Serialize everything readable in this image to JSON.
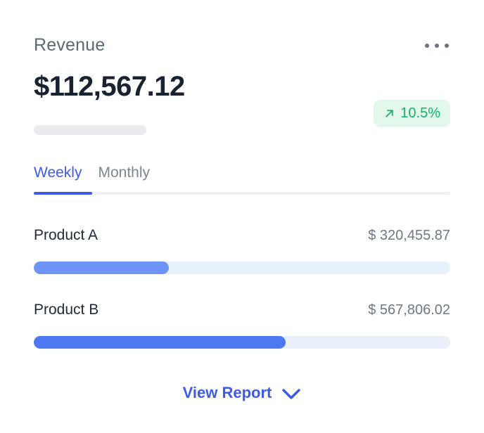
{
  "colors": {
    "accent_blue": "#3d5be8",
    "bar_a_fill": "#6d94f6",
    "bar_b_fill": "#4c79f0",
    "bar_track": "#e8f1fb",
    "badge_bg": "#e2f8eb",
    "badge_text": "#17b26a",
    "title_gray": "#5b6876",
    "muted_gray": "#7a8694",
    "value_gray": "#6e7885",
    "number_dark": "#182230"
  },
  "card": {
    "title": "Revenue",
    "menu_icon": "ellipsis",
    "total": "$112,567.12",
    "badge": {
      "icon": "arrow-up-right",
      "label": "10.5%",
      "direction": "up"
    },
    "tabs": [
      {
        "label": "Weekly",
        "active": true
      },
      {
        "label": "Monthly",
        "active": false
      }
    ],
    "products": [
      {
        "name": "Product A",
        "value": "$ 320,455.87",
        "progress_pct": 32.5
      },
      {
        "name": "Product B",
        "value": "$ 567,806.02",
        "progress_pct": 60.5
      }
    ],
    "footer": {
      "label": "View Report",
      "icon": "chevron-down"
    }
  },
  "chart_data": {
    "type": "bar",
    "title": "Revenue",
    "total": 112567.12,
    "change_pct": 10.5,
    "active_period": "Weekly",
    "categories": [
      "Product A",
      "Product B"
    ],
    "values": [
      320455.87,
      567806.02
    ]
  }
}
